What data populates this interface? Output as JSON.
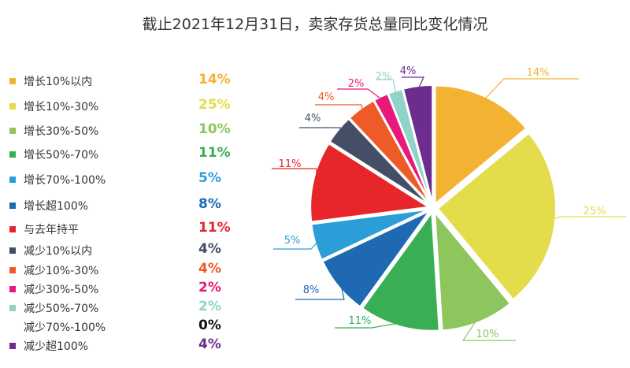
{
  "title": "截止2021年12月31日，卖家存货总量同比变化情况",
  "chart_data": {
    "type": "pie",
    "title": "截止2021年12月31日，卖家存货总量同比变化情况",
    "legend_position": "left",
    "slices": [
      {
        "label": "增长10%以内",
        "value": 14,
        "pct_label": "14%",
        "color": "#F4B232"
      },
      {
        "label": "增长10%-30%",
        "value": 25,
        "pct_label": "25%",
        "color": "#E3DD4B"
      },
      {
        "label": "增长30%-50%",
        "value": 10,
        "pct_label": "10%",
        "color": "#8CC65D"
      },
      {
        "label": "增长50%-70%",
        "value": 11,
        "pct_label": "11%",
        "color": "#3AAE55"
      },
      {
        "label": "增长70%-100%",
        "value": 5,
        "pct_label": "5%",
        "color": "#2C9ED7"
      },
      {
        "label": "增长超100%",
        "value": 8,
        "pct_label": "8%",
        "color": "#1E69B2"
      },
      {
        "label": "与去年持平",
        "value": 11,
        "pct_label": "11%",
        "color": "#E6262A"
      },
      {
        "label": "减少10%以内",
        "value": 4,
        "pct_label": "4%",
        "color": "#444F67"
      },
      {
        "label": "减少10%-30%",
        "value": 4,
        "pct_label": "4%",
        "color": "#EE5A28"
      },
      {
        "label": "减少30%-50%",
        "value": 2,
        "pct_label": "2%",
        "color": "#E8197A"
      },
      {
        "label": "减少50%-70%",
        "value": 2,
        "pct_label": "2%",
        "color": "#8FD3C9"
      },
      {
        "label": "减少70%-100%",
        "value": 0,
        "pct_label": "0%",
        "color": "#111111"
      },
      {
        "label": "减少超100%",
        "value": 4,
        "pct_label": "4%",
        "color": "#6C2D8F"
      }
    ],
    "pie_order": [
      0,
      1,
      2,
      3,
      5,
      4,
      6,
      7,
      8,
      9,
      10,
      12
    ]
  }
}
